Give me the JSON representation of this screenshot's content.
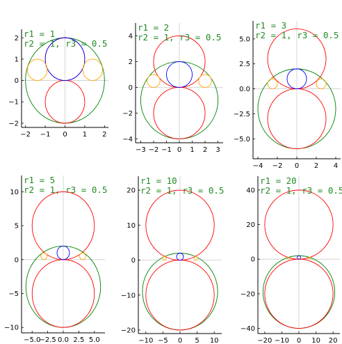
{
  "figure": {
    "colors": {
      "outer_circle": "#008000",
      "big_circle": "#ff0000",
      "small_circle": "#0000ff",
      "tangent_circle": "#ffa500",
      "zero_line": "#cccccc",
      "annotation": "#228b22"
    }
  },
  "chart_data": [
    {
      "type": "scatter",
      "annotation": [
        "r1 = 1",
        "r2 = 1, r3 = 0.5"
      ],
      "xlim": [
        -2.2,
        2.2
      ],
      "ylim": [
        -2.2,
        2.4
      ],
      "xticks": [
        -2,
        -1,
        0,
        1,
        2
      ],
      "xtick_labels": [
        "−2",
        "−1",
        "0",
        "1",
        "2"
      ],
      "yticks": [
        -2,
        -1,
        0,
        1,
        2
      ],
      "ytick_labels": [
        "−2",
        "−1",
        "0",
        "1",
        "2"
      ],
      "circles": [
        {
          "name": "outer",
          "color": "#008000",
          "cx": 0,
          "cy": 0,
          "r": 2
        },
        {
          "name": "upper",
          "color": "#ff0000",
          "cx": 0,
          "cy": 1,
          "r": 1
        },
        {
          "name": "lower",
          "color": "#ff0000",
          "cx": 0,
          "cy": -1,
          "r": 1
        },
        {
          "name": "small",
          "color": "#0000ff",
          "cx": 0,
          "cy": 1,
          "r": 1
        },
        {
          "name": "tangent-left",
          "color": "#ffa500",
          "cx": -1.4,
          "cy": 0.5,
          "r": 0.5
        },
        {
          "name": "tangent-right",
          "color": "#ffa500",
          "cx": 1.4,
          "cy": 0.5,
          "r": 0.5
        }
      ]
    },
    {
      "type": "scatter",
      "annotation": [
        "r1 = 2",
        "r2 = 1, r3 = 0.5"
      ],
      "xlim": [
        -3.4,
        3.4
      ],
      "ylim": [
        -4.3,
        5.0
      ],
      "xticks": [
        -3,
        -2,
        -1,
        0,
        1,
        2,
        3
      ],
      "xtick_labels": [
        "−3",
        "−2",
        "−1",
        "0",
        "1",
        "2",
        "3"
      ],
      "yticks": [
        -4,
        -2,
        0,
        2,
        4
      ],
      "ytick_labels": [
        "−4",
        "−2",
        "0",
        "2",
        "4"
      ],
      "circles": [
        {
          "name": "outer",
          "color": "#008000",
          "cx": 0,
          "cy": -1,
          "r": 3
        },
        {
          "name": "upper",
          "color": "#ff0000",
          "cx": 0,
          "cy": 2,
          "r": 2
        },
        {
          "name": "lower",
          "color": "#ff0000",
          "cx": 0,
          "cy": -2,
          "r": 2
        },
        {
          "name": "small",
          "color": "#0000ff",
          "cx": 0,
          "cy": 1,
          "r": 1
        },
        {
          "name": "tangent-left",
          "color": "#ffa500",
          "cx": -2,
          "cy": 0.5,
          "r": 0.5
        },
        {
          "name": "tangent-right",
          "color": "#ffa500",
          "cx": 2,
          "cy": 0.5,
          "r": 0.5
        }
      ]
    },
    {
      "type": "scatter",
      "annotation": [
        "r1 = 3",
        "r2 = 1, r3 = 0.5"
      ],
      "xlim": [
        -4.5,
        4.5
      ],
      "ylim": [
        -7.0,
        6.8
      ],
      "xticks": [
        -4,
        -2,
        0,
        2,
        4
      ],
      "xtick_labels": [
        "−4",
        "−2",
        "0",
        "2",
        "4"
      ],
      "yticks": [
        -5,
        -2.5,
        0,
        2.5,
        5
      ],
      "ytick_labels": [
        "−5.0",
        "−2.5",
        "0.0",
        "2.5",
        "5.0"
      ],
      "circles": [
        {
          "name": "outer",
          "color": "#008000",
          "cx": 0,
          "cy": -2,
          "r": 4
        },
        {
          "name": "upper",
          "color": "#ff0000",
          "cx": 0,
          "cy": 3,
          "r": 3
        },
        {
          "name": "lower",
          "color": "#ff0000",
          "cx": 0,
          "cy": -3,
          "r": 3
        },
        {
          "name": "small",
          "color": "#0000ff",
          "cx": 0,
          "cy": 1,
          "r": 1
        },
        {
          "name": "tangent-left",
          "color": "#ffa500",
          "cx": -2.5,
          "cy": 0.5,
          "r": 0.5
        },
        {
          "name": "tangent-right",
          "color": "#ffa500",
          "cx": 2.5,
          "cy": 0.5,
          "r": 0.5
        }
      ]
    },
    {
      "type": "scatter",
      "annotation": [
        "r1 = 5",
        "r2 = 1, r3 = 0.5"
      ],
      "xlim": [
        -6.7,
        6.7
      ],
      "ylim": [
        -10.8,
        12.4
      ],
      "xticks": [
        -5,
        -2.5,
        0,
        2.5,
        5
      ],
      "xtick_labels": [
        "−5.0",
        "−2.5",
        "0.0",
        "2.5",
        "5.0"
      ],
      "yticks": [
        -10,
        -5,
        0,
        5,
        10
      ],
      "ytick_labels": [
        "−10",
        "−5",
        "0",
        "5",
        "10"
      ],
      "circles": [
        {
          "name": "outer",
          "color": "#008000",
          "cx": 0,
          "cy": -4,
          "r": 6
        },
        {
          "name": "upper",
          "color": "#ff0000",
          "cx": 0,
          "cy": 5,
          "r": 5
        },
        {
          "name": "lower",
          "color": "#ff0000",
          "cx": 0,
          "cy": -5,
          "r": 5
        },
        {
          "name": "small",
          "color": "#0000ff",
          "cx": 0,
          "cy": 1,
          "r": 1
        },
        {
          "name": "tangent-left",
          "color": "#ffa500",
          "cx": -3.1,
          "cy": 0.5,
          "r": 0.5
        },
        {
          "name": "tangent-right",
          "color": "#ffa500",
          "cx": 3.1,
          "cy": 0.5,
          "r": 0.5
        }
      ]
    },
    {
      "type": "scatter",
      "annotation": [
        "r1 = 10",
        "r2 = 1, r3 = 0.5"
      ],
      "xlim": [
        -12.2,
        12.2
      ],
      "ylim": [
        -21.0,
        24.0
      ],
      "xticks": [
        -10,
        -5,
        0,
        5,
        10
      ],
      "xtick_labels": [
        "−10",
        "−5",
        "0",
        "5",
        "10"
      ],
      "yticks": [
        -20,
        -10,
        0,
        10,
        20
      ],
      "ytick_labels": [
        "−20",
        "−10",
        "0",
        "10",
        "20"
      ],
      "circles": [
        {
          "name": "outer",
          "color": "#008000",
          "cx": 0,
          "cy": -9,
          "r": 11
        },
        {
          "name": "upper",
          "color": "#ff0000",
          "cx": 0,
          "cy": 10,
          "r": 10
        },
        {
          "name": "lower",
          "color": "#ff0000",
          "cx": 0,
          "cy": -10,
          "r": 10
        },
        {
          "name": "small",
          "color": "#0000ff",
          "cx": 0,
          "cy": 1,
          "r": 1
        },
        {
          "name": "tangent-left",
          "color": "#ffa500",
          "cx": -4.6,
          "cy": 0.5,
          "r": 0.5
        },
        {
          "name": "tangent-right",
          "color": "#ffa500",
          "cx": 4.6,
          "cy": 0.5,
          "r": 0.5
        }
      ]
    },
    {
      "type": "scatter",
      "annotation": [
        "r1 = 20",
        "r2 = 1, r3 = 0.5"
      ],
      "xlim": [
        -24.0,
        24.0
      ],
      "ylim": [
        -43.0,
        48.0
      ],
      "xticks": [
        -20,
        -10,
        0,
        10,
        20
      ],
      "xtick_labels": [
        "−20",
        "−10",
        "0",
        "10",
        "20"
      ],
      "yticks": [
        -40,
        -20,
        0,
        20,
        40
      ],
      "ytick_labels": [
        "−40",
        "−20",
        "0",
        "20",
        "40"
      ],
      "circles": [
        {
          "name": "outer",
          "color": "#008000",
          "cx": 0,
          "cy": -19,
          "r": 21
        },
        {
          "name": "upper",
          "color": "#ff0000",
          "cx": 0,
          "cy": 20,
          "r": 20
        },
        {
          "name": "lower",
          "color": "#ff0000",
          "cx": 0,
          "cy": -20,
          "r": 20
        },
        {
          "name": "small",
          "color": "#0000ff",
          "cx": 0,
          "cy": 1,
          "r": 1
        },
        {
          "name": "tangent-left",
          "color": "#ffa500",
          "cx": -6.3,
          "cy": 0.5,
          "r": 0.5
        },
        {
          "name": "tangent-right",
          "color": "#ffa500",
          "cx": 6.3,
          "cy": 0.5,
          "r": 0.5
        }
      ]
    }
  ]
}
